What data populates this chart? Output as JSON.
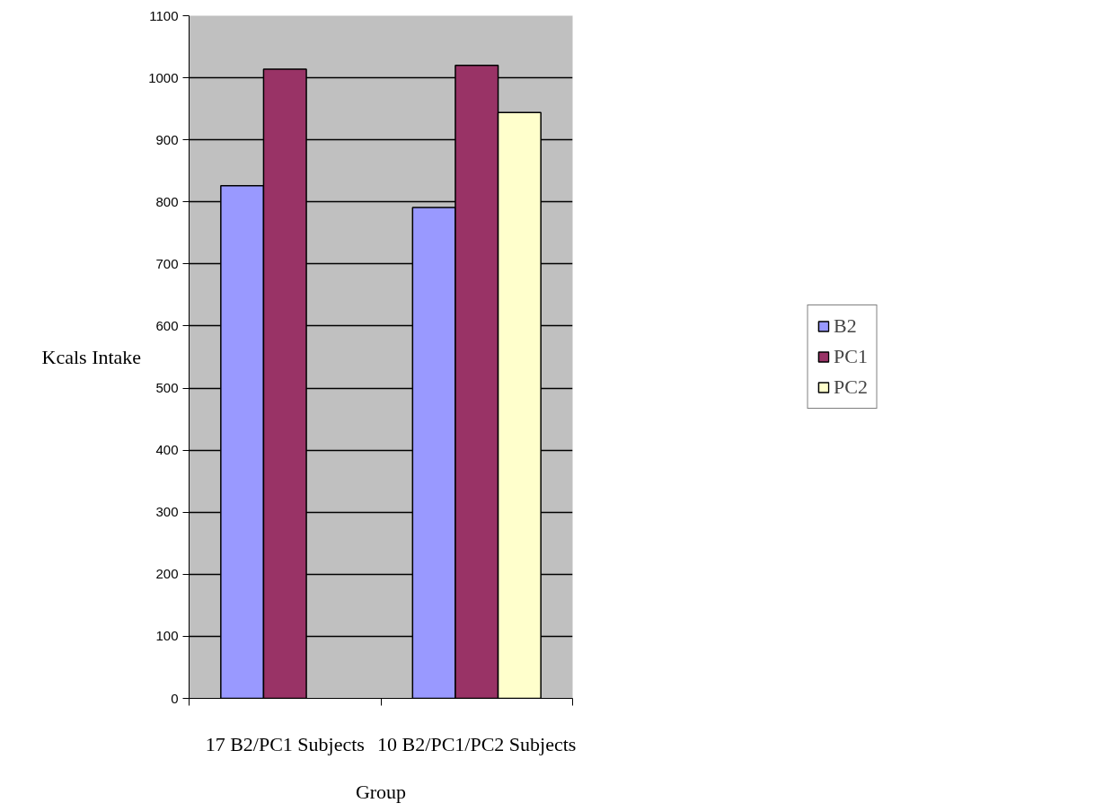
{
  "chart_data": {
    "type": "bar",
    "xlabel": "Group",
    "ylabel": "Kcals Intake",
    "categories": [
      "17 B2/PC1 Subjects",
      "10 B2/PC1/PC2 Subjects"
    ],
    "series": [
      {
        "name": "B2",
        "color": "#9999ff",
        "values": [
          826,
          791
        ]
      },
      {
        "name": "PC1",
        "color": "#993366",
        "values": [
          1014,
          1020
        ]
      },
      {
        "name": "PC2",
        "color": "#ffffcc",
        "values": [
          null,
          944
        ]
      }
    ],
    "ylim": [
      0,
      1100
    ],
    "yticks": [
      0,
      100,
      200,
      300,
      400,
      500,
      600,
      700,
      800,
      900,
      1000,
      1100
    ],
    "grid": "y",
    "legend": "right"
  }
}
